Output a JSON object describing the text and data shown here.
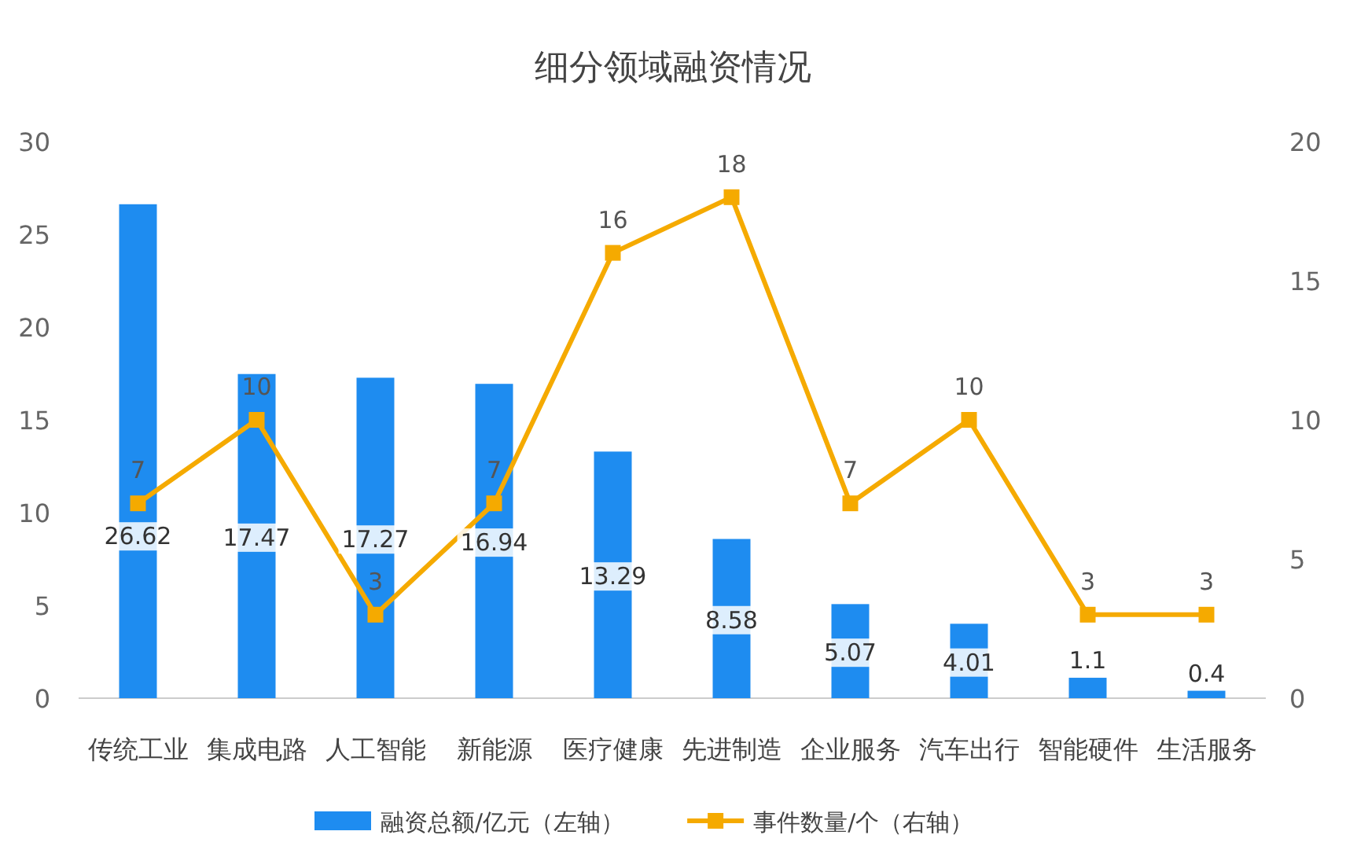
{
  "chart_data": {
    "type": "bar",
    "title": "细分领域融资情况",
    "categories": [
      "传统工业",
      "集成电路",
      "人工智能",
      "新能源",
      "医疗健康",
      "先进制造",
      "企业服务",
      "汽车出行",
      "智能硬件",
      "生活服务"
    ],
    "series": [
      {
        "name": "融资总额/亿元（左轴）",
        "color": "#1e8cf0",
        "values": [
          26.62,
          17.47,
          17.27,
          16.94,
          13.29,
          8.58,
          5.07,
          4.01,
          1.1,
          0.4
        ]
      },
      {
        "name": "事件数量/个（右轴）",
        "type": "line",
        "axis": "y2",
        "color": "#f5aa00",
        "marker": "square",
        "values": [
          7,
          10,
          3,
          7,
          16,
          18,
          7,
          10,
          3,
          3
        ]
      }
    ],
    "ylim": [
      0,
      30
    ],
    "yticks": [
      0,
      5,
      10,
      15,
      20,
      25,
      30
    ],
    "y2lim": [
      0,
      20
    ],
    "y2ticks": [
      0,
      5,
      10,
      15,
      20
    ],
    "data_labels": true,
    "grid": false,
    "legend": "bottom"
  }
}
